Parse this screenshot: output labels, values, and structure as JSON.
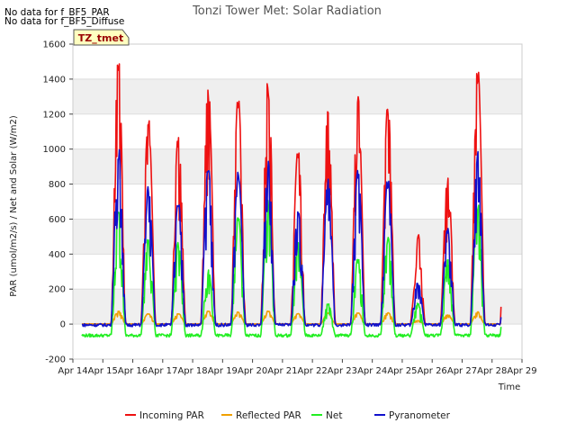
{
  "header": {
    "nodata1": "No data for f_BF5_PAR",
    "nodata2": "No data for f_BF5_Diffuse"
  },
  "tag": {
    "label": "TZ_tmet"
  },
  "chart_data": {
    "type": "line",
    "title": "Tonzi Tower Met: Solar Radiation",
    "xlabel": "Time",
    "ylabel": "PAR (umol/m2/s) / Net and Solar (W/m2)",
    "xlim": [
      14,
      29
    ],
    "ylim": [
      -200,
      1600
    ],
    "yticks": [
      -200,
      0,
      200,
      400,
      600,
      800,
      1000,
      1200,
      1400,
      1600
    ],
    "xticks": [
      14,
      15,
      16,
      17,
      18,
      19,
      20,
      21,
      22,
      23,
      24,
      25,
      26,
      27,
      28,
      29
    ],
    "xticklabels": [
      "Apr 14",
      "Apr 15",
      "Apr 16",
      "Apr 17",
      "Apr 18",
      "Apr 19",
      "Apr 20",
      "Apr 21",
      "Apr 22",
      "Apr 23",
      "Apr 24",
      "Apr 25",
      "Apr 26",
      "Apr 27",
      "Apr 28",
      "Apr 29"
    ],
    "grid": true,
    "legend_position": "bottom",
    "x_data_range": [
      14.3,
      28.3
    ],
    "days": [
      15,
      16,
      17,
      18,
      19,
      20,
      21,
      22,
      23,
      24,
      25,
      26,
      27,
      28
    ],
    "series": [
      {
        "name": "Incoming PAR",
        "color": "#ee1111",
        "night_value": 0,
        "peaks": [
          1530,
          1195,
          1080,
          1380,
          1310,
          1420,
          1005,
          1240,
          1310,
          1265,
          525,
          850,
          1480,
          1440
        ]
      },
      {
        "name": "Reflected PAR",
        "color": "#f0a000",
        "night_value": 0,
        "peaks": [
          75,
          60,
          60,
          75,
          70,
          75,
          60,
          65,
          65,
          65,
          20,
          55,
          70,
          75
        ]
      },
      {
        "name": "Net",
        "color": "#22ee22",
        "night_value": -65,
        "peaks": [
          650,
          500,
          470,
          310,
          620,
          720,
          470,
          120,
          380,
          500,
          120,
          370,
          700,
          700
        ]
      },
      {
        "name": "Pyranometer",
        "color": "#1111cc",
        "night_value": -5,
        "peaks": [
          1025,
          790,
          700,
          900,
          870,
          930,
          650,
          840,
          880,
          840,
          240,
          550,
          990,
          960
        ]
      }
    ]
  }
}
